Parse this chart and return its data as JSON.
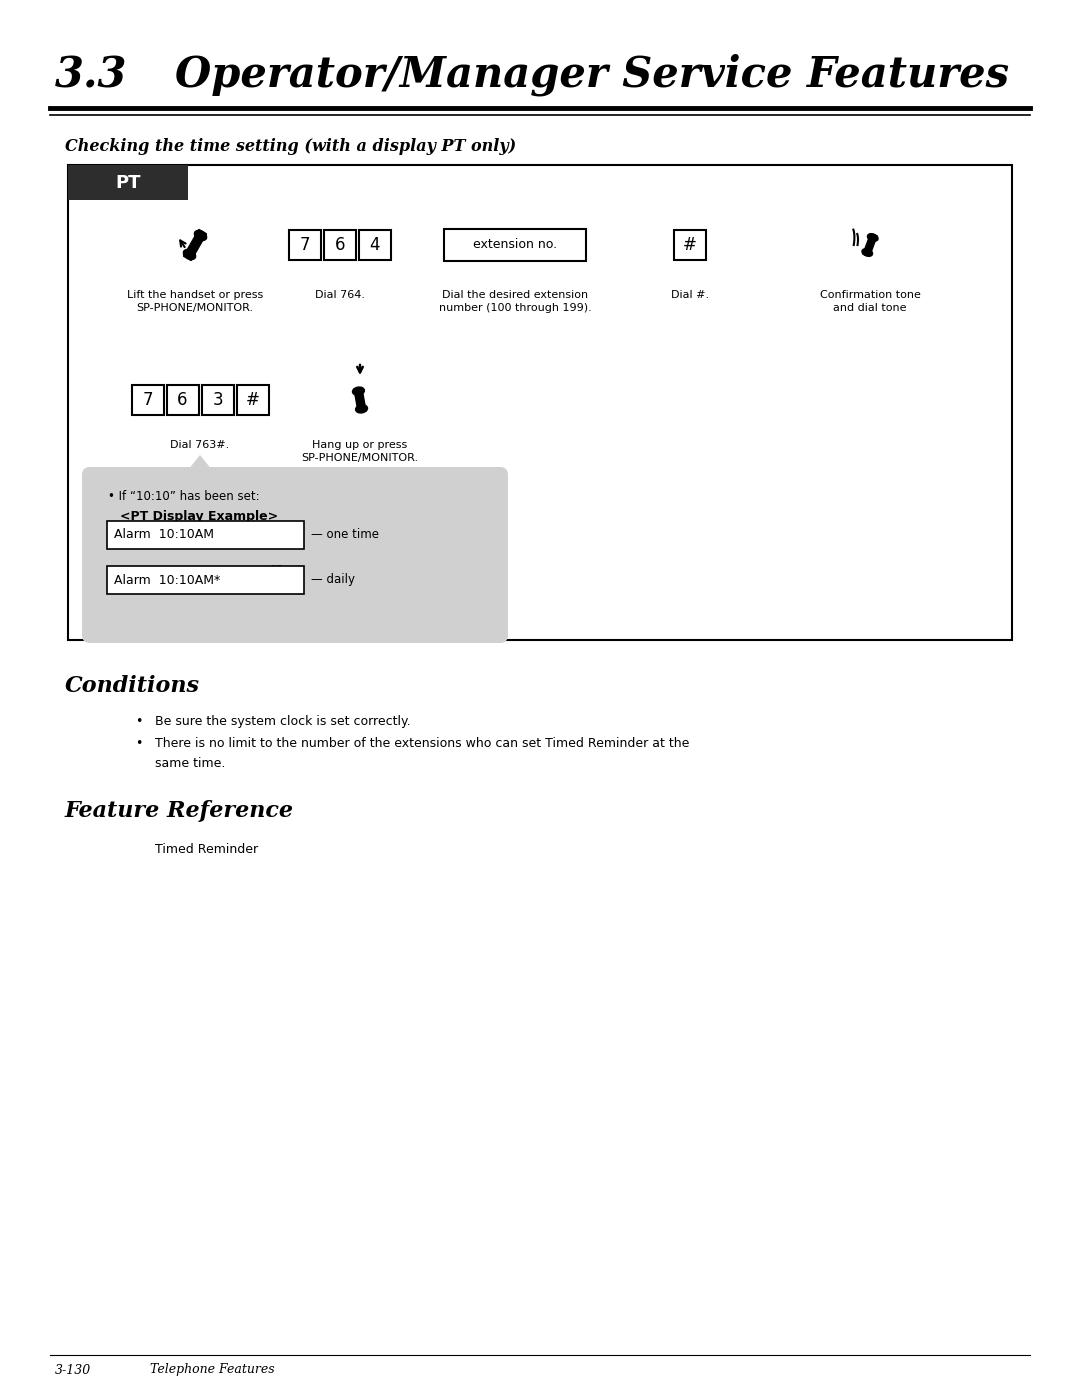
{
  "title_number": "3.3",
  "title_text": "Operator/Manager Service Features",
  "subtitle": "Checking the time setting (with a display PT only)",
  "pt_label": "PT",
  "step1_desc": "Lift the handset or press\nSP-PHONE/MONITOR.",
  "step2_keys": [
    "7",
    "6",
    "4"
  ],
  "step2_desc": "Dial 764.",
  "step3_key": "extension no.",
  "step3_desc": "Dial the desired extension\nnumber (100 through 199).",
  "step4_key": "#",
  "step4_desc": "Dial #.",
  "step5_desc": "Confirmation tone\nand dial tone",
  "step6_keys": [
    "7",
    "6",
    "3",
    "#"
  ],
  "step6_desc": "Dial 763#.",
  "step7_desc": "Hang up or press\nSP-PHONE/MONITOR.",
  "note_bullet": "If “10:10” has been set:",
  "note_bold": "<PT Display Example>",
  "display1": "Alarm  10:10AM",
  "display1_note": "— one time",
  "display2": "Alarm  10:10AM*",
  "display2_note": "— daily",
  "conditions_title": "Conditions",
  "condition1": "Be sure the system clock is set correctly.",
  "condition2": "There is no limit to the number of the extensions who can set Timed Reminder at the same time.",
  "feature_ref_title": "Feature Reference",
  "feature_ref_text": "Timed Reminder",
  "footer_left": "3-130",
  "footer_right": "Telephone Features",
  "bg_color": "#ffffff",
  "dark_header": "#2d2d2d",
  "gray_note": "#d0d0d0"
}
